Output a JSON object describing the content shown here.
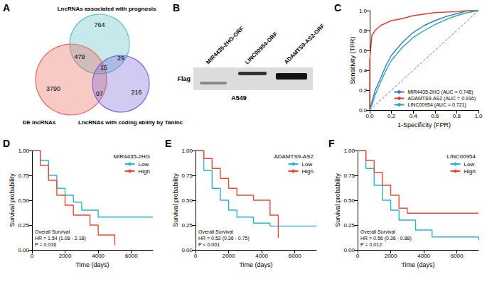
{
  "chart_data": [
    {
      "panel": "A",
      "type": "venn",
      "sets": [
        {
          "name": "LncRNAs associated with prognosis",
          "color": "#5fc0c9"
        },
        {
          "name": "DE lncRNAs",
          "color": "#e8675c"
        },
        {
          "name": "LncRNAs with coding ability by TanInc",
          "color": "#7b68d6"
        }
      ],
      "regions": [
        {
          "sets": [
            0
          ],
          "value": 764
        },
        {
          "sets": [
            1
          ],
          "value": 3790
        },
        {
          "sets": [
            2
          ],
          "value": 216
        },
        {
          "sets": [
            0,
            1
          ],
          "value": 479
        },
        {
          "sets": [
            0,
            2
          ],
          "value": 29
        },
        {
          "sets": [
            1,
            2
          ],
          "value": 97
        },
        {
          "sets": [
            0,
            1,
            2
          ],
          "value": 15
        }
      ]
    },
    {
      "panel": "B",
      "type": "blot",
      "lanes": [
        "MIR4435-2HG-ORF",
        "LINC00954-ORF",
        "ADAMTS9-AS2-ORF"
      ],
      "row_label": "Flag",
      "annotations": [
        "A549"
      ]
    },
    {
      "panel": "C",
      "type": "line",
      "x_label": "1-Specificity (FPR)",
      "y_label": "Sensitivity (TPR)",
      "xlim": [
        0,
        1
      ],
      "ylim": [
        0,
        1
      ],
      "xticks": [
        {
          "value": 0,
          "label": "0.0"
        },
        0.2,
        0.4,
        0.6,
        0.8,
        {
          "value": 1,
          "label": "1.0"
        }
      ],
      "yticks": [
        {
          "value": 0,
          "label": "0.0"
        },
        0.2,
        0.4,
        0.6,
        0.8,
        {
          "value": 1,
          "label": "1.0"
        }
      ],
      "grid": false,
      "legend": "lower right",
      "series": [
        {
          "name": "MIR4435-2HG (AUC = 0.748)",
          "color": "#3a78c3",
          "x": [
            0,
            0.02,
            0.05,
            0.1,
            0.15,
            0.2,
            0.3,
            0.4,
            0.5,
            0.6,
            0.7,
            0.8,
            0.9,
            1
          ],
          "values": [
            0,
            0.08,
            0.2,
            0.32,
            0.45,
            0.55,
            0.68,
            0.78,
            0.85,
            0.9,
            0.94,
            0.97,
            1,
            1
          ]
        },
        {
          "name": "ADAMTS9-AS2 (AUC = 0.916)",
          "color": "#e8392e",
          "x": [
            0,
            0,
            0.02,
            0.05,
            0.1,
            0.2,
            0.3,
            0.4,
            0.6,
            0.8,
            0.9,
            1
          ],
          "values": [
            0,
            0.5,
            0.75,
            0.8,
            0.85,
            0.9,
            0.92,
            0.95,
            0.98,
            0.99,
            1,
            1
          ]
        },
        {
          "name": "LINC00954 (AUC = 0.721)",
          "color": "#2aa6a6",
          "x": [
            0,
            0.02,
            0.05,
            0.1,
            0.15,
            0.2,
            0.3,
            0.4,
            0.5,
            0.6,
            0.7,
            0.8,
            0.9,
            1
          ],
          "values": [
            0,
            0.05,
            0.15,
            0.28,
            0.4,
            0.5,
            0.63,
            0.73,
            0.8,
            0.86,
            0.91,
            0.95,
            0.98,
            1
          ]
        }
      ],
      "reference_line": {
        "x": [
          0,
          1
        ],
        "values": [
          0,
          1
        ],
        "color": "#808080",
        "line_style": "dashed"
      }
    },
    {
      "panel": "D",
      "type": "step",
      "x_label": "Time (days)",
      "y_label": "Survival probability",
      "xlim": [
        0,
        7300
      ],
      "ylim": [
        0,
        1
      ],
      "xticks": [
        0,
        2000,
        4000,
        6000
      ],
      "yticks": [
        {
          "value": 0,
          "label": "0.00"
        },
        {
          "value": 0.25,
          "label": "0.25"
        },
        {
          "value": 0.5,
          "label": "0.50"
        },
        {
          "value": 0.75,
          "label": "0.75"
        },
        {
          "value": 1,
          "label": "1.00"
        }
      ],
      "grid": false,
      "legend": "upper right",
      "legend_title": "MIR4435-2HG",
      "annotations": [
        "Overall Survival",
        "HR = 1.54 (1.08 - 2.18)",
        "P = 0.016"
      ],
      "series": [
        {
          "name": "Low",
          "color": "#2bb3d9",
          "x": [
            0,
            500,
            1000,
            1500,
            2000,
            2500,
            3000,
            4000,
            7300
          ],
          "values": [
            1,
            0.9,
            0.75,
            0.62,
            0.55,
            0.48,
            0.4,
            0.33,
            0.33
          ]
        },
        {
          "name": "High",
          "color": "#e64b35",
          "x": [
            0,
            500,
            1000,
            1500,
            2000,
            2500,
            3500,
            4000,
            5000
          ],
          "values": [
            1,
            0.85,
            0.7,
            0.55,
            0.45,
            0.35,
            0.25,
            0.15,
            0.05
          ]
        }
      ]
    },
    {
      "panel": "E",
      "type": "step",
      "x_label": "Time (days)",
      "y_label": "Survival probability",
      "xlim": [
        0,
        7300
      ],
      "ylim": [
        0,
        1
      ],
      "xticks": [
        0,
        2000,
        4000,
        6000
      ],
      "yticks": [
        {
          "value": 0,
          "label": "0.00"
        },
        {
          "value": 0.25,
          "label": "0.25"
        },
        {
          "value": 0.5,
          "label": "0.50"
        },
        {
          "value": 0.75,
          "label": "0.75"
        },
        {
          "value": 1,
          "label": "1.00"
        }
      ],
      "grid": false,
      "legend": "upper right",
      "legend_title": "ADAMTS9-AS2",
      "annotations": [
        "Overall Survival",
        "HR = 0.52 (0.36 - 0.75)",
        "P < 0.001"
      ],
      "series": [
        {
          "name": "Low",
          "color": "#2bb3d9",
          "x": [
            0,
            500,
            1000,
            1500,
            2000,
            2500,
            3500,
            4500,
            7300
          ],
          "values": [
            1,
            0.8,
            0.62,
            0.5,
            0.4,
            0.33,
            0.27,
            0.24,
            0.24
          ]
        },
        {
          "name": "High",
          "color": "#e64b35",
          "x": [
            0,
            500,
            1000,
            1500,
            2000,
            2500,
            3500,
            4500,
            5000
          ],
          "values": [
            1,
            0.92,
            0.82,
            0.72,
            0.62,
            0.55,
            0.5,
            0.35,
            0.12
          ]
        }
      ]
    },
    {
      "panel": "F",
      "type": "step",
      "x_label": "Time (days)",
      "y_label": "Survival probability",
      "xlim": [
        0,
        7300
      ],
      "ylim": [
        0,
        1
      ],
      "xticks": [
        0,
        2000,
        4000,
        6000
      ],
      "yticks": [
        {
          "value": 0,
          "label": "0.00"
        },
        {
          "value": 0.25,
          "label": "0.25"
        },
        {
          "value": 0.5,
          "label": "0.50"
        },
        {
          "value": 0.75,
          "label": "0.75"
        },
        {
          "value": 1,
          "label": "1.00"
        }
      ],
      "grid": false,
      "legend": "upper right",
      "legend_title": "LINC00954",
      "annotations": [
        "Overall Survival",
        "HR = 0.56 (0.36 - 0.88)",
        "P = 0.012"
      ],
      "series": [
        {
          "name": "Low",
          "color": "#2bb3d9",
          "x": [
            0,
            500,
            1000,
            1500,
            2000,
            2500,
            3500,
            4500,
            7300
          ],
          "values": [
            1,
            0.82,
            0.65,
            0.5,
            0.4,
            0.3,
            0.2,
            0.13,
            0.1
          ]
        },
        {
          "name": "High",
          "color": "#e64b35",
          "x": [
            0,
            500,
            1000,
            1500,
            2000,
            2500,
            3000,
            7300
          ],
          "values": [
            1,
            0.9,
            0.78,
            0.65,
            0.55,
            0.42,
            0.37,
            0.37
          ]
        }
      ]
    }
  ]
}
